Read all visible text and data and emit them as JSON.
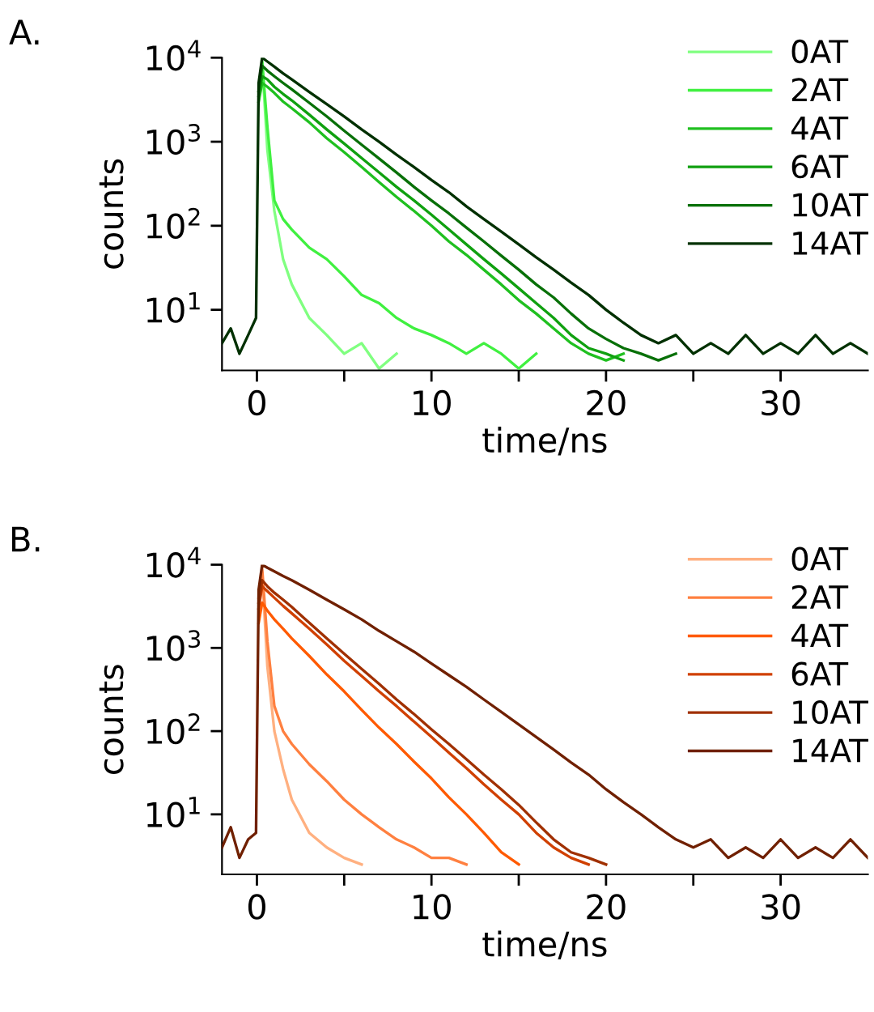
{
  "chart_data": [
    {
      "type": "line",
      "title": "A.",
      "xlabel": "time/ns",
      "ylabel": "counts",
      "legend": "top right",
      "grid": false,
      "log": "y",
      "xlim": [
        -2,
        35
      ],
      "ylim": [
        1.9,
        10000
      ],
      "xticks": [
        0,
        {
          "value": 5,
          "label": null
        },
        10,
        {
          "value": 15,
          "label": null
        },
        20,
        {
          "value": 25,
          "label": null
        },
        30
      ],
      "yticks": [
        {
          "value": 10,
          "label": "10$^{1}$"
        },
        {
          "value": 100,
          "label": "10$^{2}$"
        },
        {
          "value": 1000,
          "label": "10$^{3}$"
        },
        {
          "value": 10000,
          "label": "10$^{4}$"
        }
      ],
      "x": [
        -2,
        -1.5,
        -1,
        -0.5,
        -0.05,
        0.1,
        0.3,
        0.6,
        1,
        1.5,
        2,
        3,
        4,
        5,
        6,
        7,
        8,
        9,
        10,
        11,
        12,
        13,
        14,
        15,
        16,
        17,
        18,
        19,
        20,
        21,
        22,
        23,
        24,
        25,
        26,
        27,
        28,
        29,
        30,
        31,
        32,
        33,
        34,
        35
      ],
      "series": [
        {
          "name": "0AT",
          "color": "#80ff80",
          "values": [
            null,
            null,
            null,
            null,
            null,
            3000,
            9000,
            800,
            150,
            40,
            20,
            8,
            5,
            3,
            4,
            2,
            3,
            null,
            null,
            null,
            null,
            null,
            null,
            null,
            null,
            null,
            null,
            null,
            null,
            null,
            null,
            null,
            null,
            null,
            null,
            null,
            null,
            null,
            null,
            null,
            null,
            null,
            null,
            null
          ]
        },
        {
          "name": "2AT",
          "color": "#40f040",
          "values": [
            null,
            null,
            null,
            null,
            null,
            4000,
            9000,
            1500,
            200,
            120,
            90,
            55,
            40,
            25,
            15,
            12,
            8,
            6,
            5,
            4,
            3,
            4,
            3,
            2,
            3,
            null,
            null,
            null,
            null,
            null,
            null,
            null,
            null,
            null,
            null,
            null,
            null,
            null,
            null,
            null,
            null,
            null,
            null,
            null
          ]
        },
        {
          "name": "4AT",
          "color": "#20c020",
          "values": [
            null,
            null,
            null,
            null,
            null,
            3000,
            5000,
            4500,
            3800,
            3000,
            2500,
            1700,
            1100,
            750,
            500,
            330,
            220,
            150,
            100,
            65,
            45,
            30,
            20,
            13,
            9,
            6,
            4,
            3,
            2.5,
            3,
            null,
            null,
            null,
            null,
            null,
            null,
            null,
            null,
            null,
            null,
            null,
            null,
            null,
            null
          ]
        },
        {
          "name": "6AT",
          "color": "#10a010",
          "values": [
            null,
            null,
            null,
            null,
            null,
            3500,
            6000,
            5500,
            4500,
            3700,
            3100,
            2100,
            1400,
            950,
            640,
            430,
            290,
            200,
            135,
            90,
            60,
            40,
            27,
            18,
            12,
            8,
            5,
            3.5,
            3,
            2.5,
            null,
            null,
            null,
            null,
            null,
            null,
            null,
            null,
            null,
            null,
            null,
            null,
            null,
            null
          ]
        },
        {
          "name": "10AT",
          "color": "#087008",
          "values": [
            null,
            null,
            null,
            null,
            null,
            4000,
            8000,
            7000,
            6000,
            5000,
            4200,
            2900,
            2000,
            1350,
            920,
            630,
            430,
            290,
            200,
            140,
            95,
            65,
            44,
            30,
            20,
            14,
            9,
            6,
            4.5,
            3.5,
            3,
            2.5,
            3,
            null,
            null,
            null,
            null,
            null,
            null,
            null,
            null,
            null,
            null,
            null
          ]
        },
        {
          "name": "14AT",
          "color": "#003000",
          "values": [
            4,
            6,
            3,
            5,
            8,
            5000,
            10000,
            9000,
            7800,
            6500,
            5500,
            3900,
            2800,
            2000,
            1400,
            1000,
            700,
            500,
            350,
            250,
            170,
            120,
            85,
            60,
            42,
            30,
            21,
            15,
            10,
            7,
            5,
            4,
            5,
            3,
            4,
            3,
            5,
            3,
            4,
            3,
            5,
            3,
            4,
            3
          ]
        }
      ]
    },
    {
      "type": "line",
      "title": "B.",
      "xlabel": "time/ns",
      "ylabel": "counts",
      "legend": "top right",
      "grid": false,
      "log": "y",
      "xlim": [
        -2,
        35
      ],
      "ylim": [
        1.9,
        10000
      ],
      "xticks": [
        0,
        {
          "value": 5,
          "label": null
        },
        10,
        {
          "value": 15,
          "label": null
        },
        20,
        {
          "value": 25,
          "label": null
        },
        30
      ],
      "yticks": [
        {
          "value": 10,
          "label": "10$^{1}$"
        },
        {
          "value": 100,
          "label": "10$^{2}$"
        },
        {
          "value": 1000,
          "label": "10$^{3}$"
        },
        {
          "value": 10000,
          "label": "10$^{4}$"
        }
      ],
      "x": [
        -2,
        -1.5,
        -1,
        -0.5,
        -0.05,
        0.1,
        0.3,
        0.6,
        1,
        1.5,
        2,
        3,
        4,
        5,
        6,
        7,
        8,
        9,
        10,
        11,
        12,
        13,
        14,
        15,
        16,
        17,
        18,
        19,
        20,
        21,
        22,
        23,
        24,
        25,
        26,
        27,
        28,
        29,
        30,
        31,
        32,
        33,
        34,
        35
      ],
      "series": [
        {
          "name": "0AT",
          "color": "#ffb080",
          "values": [
            null,
            null,
            null,
            null,
            null,
            3000,
            8000,
            600,
            100,
            35,
            15,
            6,
            4,
            3,
            2.5,
            null,
            null,
            null,
            null,
            null,
            null,
            null,
            null,
            null,
            null,
            null,
            null,
            null,
            null,
            null,
            null,
            null,
            null,
            null,
            null,
            null,
            null,
            null,
            null,
            null,
            null,
            null,
            null,
            null
          ]
        },
        {
          "name": "2AT",
          "color": "#ff8040",
          "values": [
            null,
            null,
            null,
            null,
            null,
            4000,
            9000,
            1200,
            200,
            100,
            70,
            40,
            25,
            15,
            10,
            7,
            5,
            4,
            3,
            3,
            2.5,
            null,
            null,
            null,
            null,
            null,
            null,
            null,
            null,
            null,
            null,
            null,
            null,
            null,
            null,
            null,
            null,
            null,
            null,
            null,
            null,
            null,
            null,
            null
          ]
        },
        {
          "name": "4AT",
          "color": "#ff5a00",
          "values": [
            null,
            null,
            null,
            null,
            null,
            2000,
            3500,
            2800,
            2200,
            1700,
            1300,
            800,
            480,
            300,
            180,
            110,
            70,
            43,
            27,
            16,
            10,
            6,
            3.5,
            2.5,
            null,
            null,
            null,
            null,
            null,
            null,
            null,
            null,
            null,
            null,
            null,
            null,
            null,
            null,
            null,
            null,
            null,
            null,
            null,
            null
          ]
        },
        {
          "name": "6AT",
          "color": "#d04000",
          "values": [
            null,
            null,
            null,
            null,
            null,
            3000,
            5500,
            4800,
            4000,
            3200,
            2600,
            1700,
            1100,
            700,
            460,
            300,
            200,
            130,
            85,
            55,
            36,
            23,
            15,
            10,
            6,
            4,
            3,
            2.5,
            null,
            null,
            null,
            null,
            null,
            null,
            null,
            null,
            null,
            null,
            null,
            null,
            null,
            null,
            null,
            null
          ]
        },
        {
          "name": "10AT",
          "color": "#a03000",
          "values": [
            null,
            null,
            null,
            null,
            null,
            3500,
            6500,
            5500,
            4600,
            3800,
            3100,
            2000,
            1300,
            850,
            560,
            370,
            240,
            160,
            105,
            70,
            46,
            30,
            20,
            13,
            8,
            5,
            3.5,
            3,
            2.5,
            null,
            null,
            null,
            null,
            null,
            null,
            null,
            null,
            null,
            null,
            null,
            null,
            null,
            null,
            null
          ]
        },
        {
          "name": "14AT",
          "color": "#702000",
          "values": [
            4,
            7,
            3,
            5,
            6,
            5000,
            10000,
            9200,
            8300,
            7300,
            6500,
            5000,
            3800,
            2900,
            2200,
            1600,
            1200,
            900,
            650,
            470,
            340,
            240,
            170,
            120,
            85,
            60,
            42,
            30,
            20,
            14,
            10,
            7,
            5,
            4,
            5,
            3,
            4,
            3,
            5,
            3,
            4,
            3,
            5,
            3
          ]
        }
      ]
    }
  ]
}
